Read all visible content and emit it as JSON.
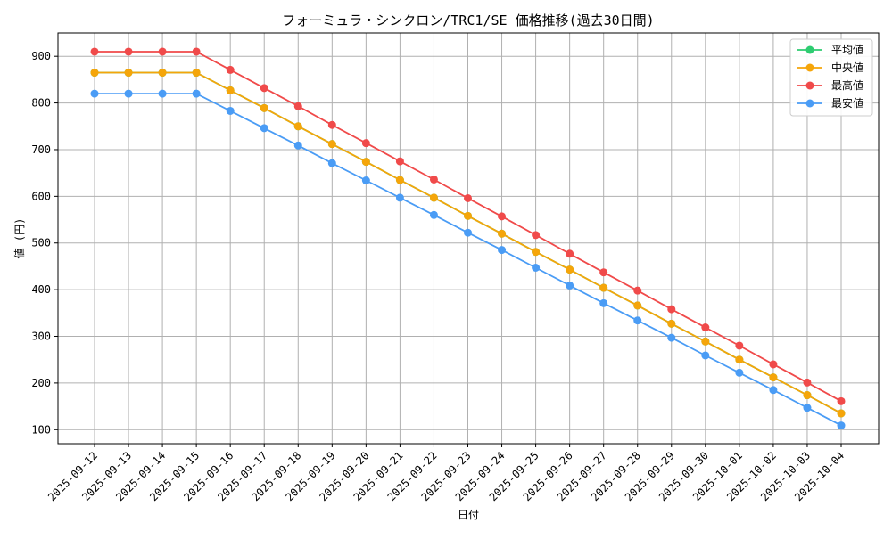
{
  "chart_data": {
    "type": "line",
    "title": "フォーミュラ・シンクロン/TRC1/SE 価格推移(過去30日間)",
    "xlabel": "日付",
    "ylabel": "値 (円)",
    "ylim": [
      70,
      950
    ],
    "yticks": [
      100,
      200,
      300,
      400,
      500,
      600,
      700,
      800,
      900
    ],
    "grid": true,
    "legend_position": "top-right",
    "categories": [
      "2025-09-12",
      "2025-09-13",
      "2025-09-14",
      "2025-09-15",
      "2025-09-16",
      "2025-09-17",
      "2025-09-18",
      "2025-09-19",
      "2025-09-20",
      "2025-09-21",
      "2025-09-22",
      "2025-09-23",
      "2025-09-24",
      "2025-09-25",
      "2025-09-26",
      "2025-09-27",
      "2025-09-28",
      "2025-09-29",
      "2025-09-30",
      "2025-10-01",
      "2025-10-02",
      "2025-10-03",
      "2025-10-04"
    ],
    "series": [
      {
        "name": "平均値",
        "color": "#2ecc71",
        "values": [
          865,
          865,
          865,
          865,
          827,
          789,
          750,
          712,
          674,
          635,
          597,
          558,
          520,
          481,
          443,
          404,
          366,
          327,
          289,
          250,
          212,
          174,
          135
        ]
      },
      {
        "name": "中央値",
        "color": "#f5a50a",
        "values": [
          865,
          865,
          865,
          865,
          827,
          789,
          750,
          712,
          674,
          635,
          597,
          558,
          520,
          481,
          443,
          404,
          366,
          327,
          289,
          250,
          212,
          174,
          135
        ]
      },
      {
        "name": "最高値",
        "color": "#f04a4a",
        "values": [
          910,
          910,
          910,
          910,
          871,
          832,
          793,
          753,
          714,
          675,
          636,
          596,
          557,
          517,
          477,
          437,
          398,
          358,
          319,
          280,
          240,
          201,
          161
        ]
      },
      {
        "name": "最安値",
        "color": "#4a9cf5",
        "values": [
          820,
          820,
          820,
          820,
          783,
          746,
          709,
          671,
          634,
          597,
          560,
          522,
          485,
          447,
          409,
          371,
          334,
          297,
          259,
          222,
          185,
          147,
          109
        ]
      }
    ]
  }
}
